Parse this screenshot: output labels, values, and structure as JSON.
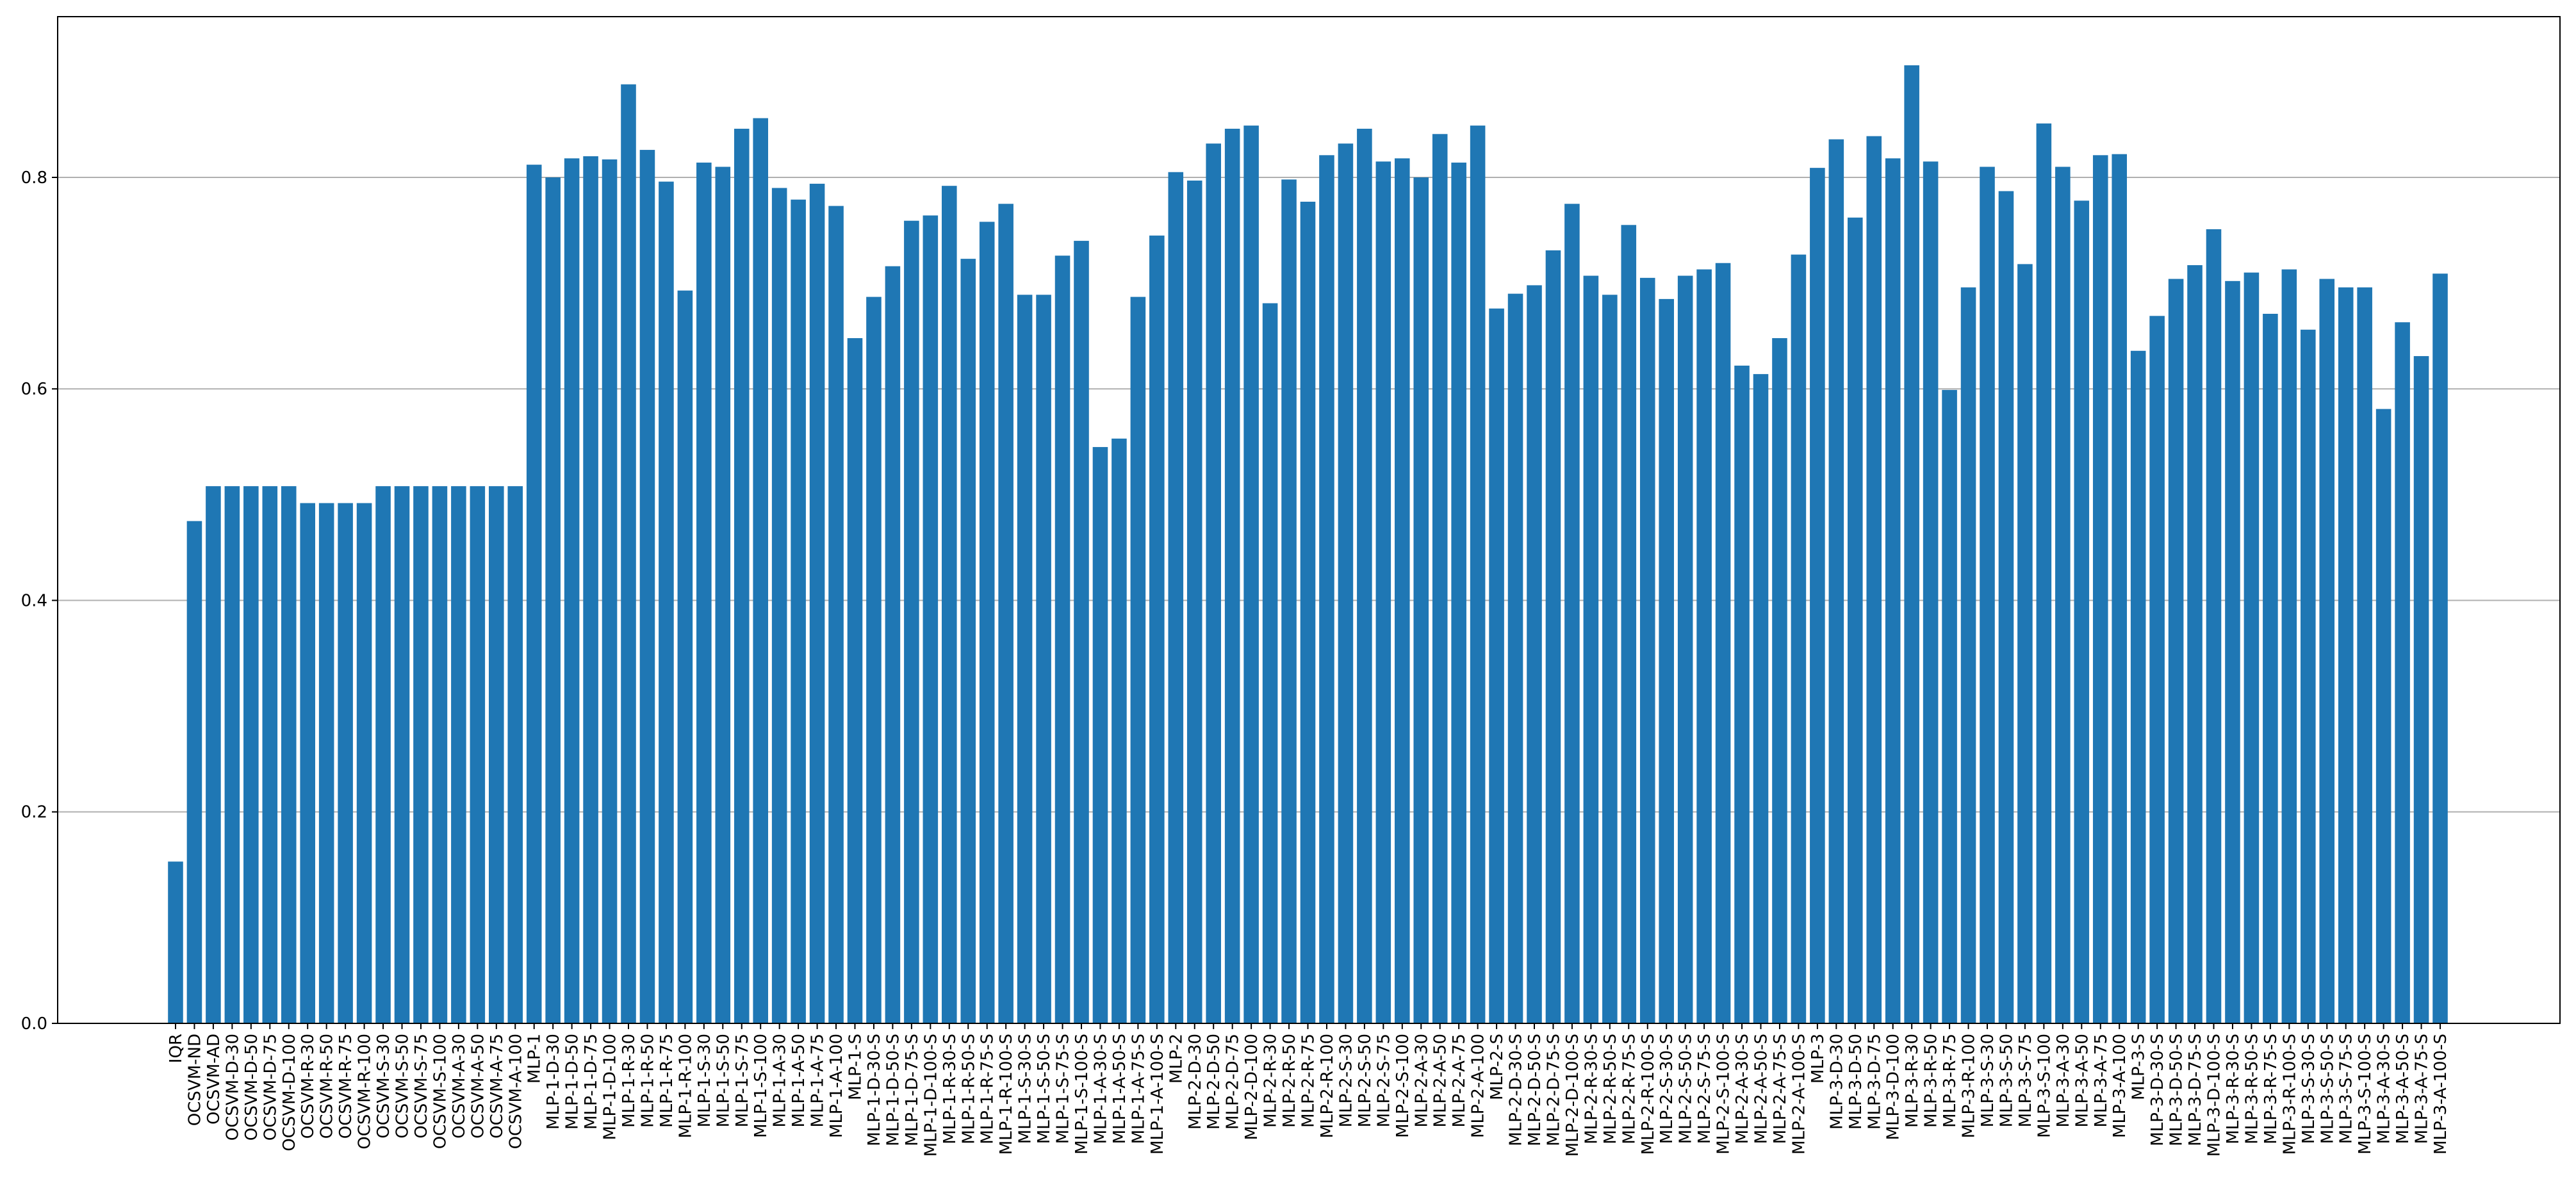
{
  "chart_data": {
    "type": "bar",
    "color": "#1f77b4",
    "grid": true,
    "ylim": [
      0,
      0.952
    ],
    "yticks": [
      {
        "value": 0,
        "label": "0.0"
      },
      0.2,
      0.4,
      0.6,
      0.8
    ],
    "categories": [
      "IQR",
      "OCSVM-ND",
      "OCSVM-AD",
      "OCSVM-D-30",
      "OCSVM-D-50",
      "OCSVM-D-75",
      "OCSVM-D-100",
      "OCSVM-R-30",
      "OCSVM-R-50",
      "OCSVM-R-75",
      "OCSVM-R-100",
      "OCSVM-S-30",
      "OCSVM-S-50",
      "OCSVM-S-75",
      "OCSVM-S-100",
      "OCSVM-A-30",
      "OCSVM-A-50",
      "OCSVM-A-75",
      "OCSVM-A-100",
      "MLP-1",
      "MLP-1-D-30",
      "MLP-1-D-50",
      "MLP-1-D-75",
      "MLP-1-D-100",
      "MLP-1-R-30",
      "MLP-1-R-50",
      "MLP-1-R-75",
      "MLP-1-R-100",
      "MLP-1-S-30",
      "MLP-1-S-50",
      "MLP-1-S-75",
      "MLP-1-S-100",
      "MLP-1-A-30",
      "MLP-1-A-50",
      "MLP-1-A-75",
      "MLP-1-A-100",
      "MLP-1-S",
      "MLP-1-D-30-S",
      "MLP-1-D-50-S",
      "MLP-1-D-75-S",
      "MLP-1-D-100-S",
      "MLP-1-R-30-S",
      "MLP-1-R-50-S",
      "MLP-1-R-75-S",
      "MLP-1-R-100-S",
      "MLP-1-S-30-S",
      "MLP-1-S-50-S",
      "MLP-1-S-75-S",
      "MLP-1-S-100-S",
      "MLP-1-A-30-S",
      "MLP-1-A-50-S",
      "MLP-1-A-75-S",
      "MLP-1-A-100-S",
      "MLP-2",
      "MLP-2-D-30",
      "MLP-2-D-50",
      "MLP-2-D-75",
      "MLP-2-D-100",
      "MLP-2-R-30",
      "MLP-2-R-50",
      "MLP-2-R-75",
      "MLP-2-R-100",
      "MLP-2-S-30",
      "MLP-2-S-50",
      "MLP-2-S-75",
      "MLP-2-S-100",
      "MLP-2-A-30",
      "MLP-2-A-50",
      "MLP-2-A-75",
      "MLP-2-A-100",
      "MLP-2-S",
      "MLP-2-D-30-S",
      "MLP-2-D-50-S",
      "MLP-2-D-75-S",
      "MLP-2-D-100-S",
      "MLP-2-R-30-S",
      "MLP-2-R-50-S",
      "MLP-2-R-75-S",
      "MLP-2-R-100-S",
      "MLP-2-S-30-S",
      "MLP-2-S-50-S",
      "MLP-2-S-75-S",
      "MLP-2-S-100-S",
      "MLP-2-A-30-S",
      "MLP-2-A-50-S",
      "MLP-2-A-75-S",
      "MLP-2-A-100-S",
      "MLP-3",
      "MLP-3-D-30",
      "MLP-3-D-50",
      "MLP-3-D-75",
      "MLP-3-D-100",
      "MLP-3-R-30",
      "MLP-3-R-50",
      "MLP-3-R-75",
      "MLP-3-R-100",
      "MLP-3-S-30",
      "MLP-3-S-50",
      "MLP-3-S-75",
      "MLP-3-S-100",
      "MLP-3-A-30",
      "MLP-3-A-50",
      "MLP-3-A-75",
      "MLP-3-A-100",
      "MLP-3-S",
      "MLP-3-D-30-S",
      "MLP-3-D-50-S",
      "MLP-3-D-75-S",
      "MLP-3-D-100-S",
      "MLP-3-R-30-S",
      "MLP-3-R-50-S",
      "MLP-3-R-75-S",
      "MLP-3-R-100-S",
      "MLP-3-S-30-S",
      "MLP-3-S-50-S",
      "MLP-3-S-75-S",
      "MLP-3-S-100-S",
      "MLP-3-A-30-S",
      "MLP-3-A-50-S",
      "MLP-3-A-75-S",
      "MLP-3-A-100-S"
    ],
    "values": [
      0.153,
      0.475,
      0.508,
      0.508,
      0.508,
      0.508,
      0.508,
      0.492,
      0.492,
      0.492,
      0.492,
      0.508,
      0.508,
      0.508,
      0.508,
      0.508,
      0.508,
      0.508,
      0.508,
      0.812,
      0.8,
      0.818,
      0.82,
      0.817,
      0.888,
      0.826,
      0.796,
      0.693,
      0.814,
      0.81,
      0.846,
      0.856,
      0.79,
      0.779,
      0.794,
      0.773,
      0.648,
      0.687,
      0.716,
      0.759,
      0.764,
      0.792,
      0.723,
      0.758,
      0.775,
      0.689,
      0.689,
      0.726,
      0.74,
      0.545,
      0.553,
      0.687,
      0.745,
      0.805,
      0.797,
      0.832,
      0.846,
      0.849,
      0.681,
      0.798,
      0.777,
      0.821,
      0.832,
      0.846,
      0.815,
      0.818,
      0.8,
      0.841,
      0.814,
      0.849,
      0.676,
      0.69,
      0.698,
      0.731,
      0.775,
      0.707,
      0.689,
      0.755,
      0.705,
      0.685,
      0.707,
      0.713,
      0.719,
      0.622,
      0.614,
      0.648,
      0.727,
      0.809,
      0.836,
      0.762,
      0.839,
      0.818,
      0.906,
      0.815,
      0.599,
      0.696,
      0.81,
      0.787,
      0.718,
      0.851,
      0.81,
      0.778,
      0.821,
      0.822,
      0.636,
      0.669,
      0.704,
      0.717,
      0.751,
      0.702,
      0.71,
      0.671,
      0.713,
      0.656,
      0.704,
      0.696,
      0.696,
      0.581,
      0.663,
      0.631,
      0.709
    ]
  }
}
